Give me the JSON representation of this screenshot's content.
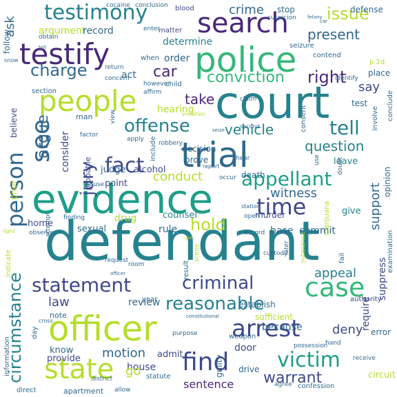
{
  "colors": {
    "background": "#ffffff",
    "palette": [
      "#440154",
      "#482878",
      "#3e4989",
      "#31688e",
      "#26828e",
      "#1f9e89",
      "#35b779",
      "#6ece58",
      "#b5de2b",
      "#fde725"
    ]
  },
  "words": [
    "defendant",
    "court",
    "evidence",
    "police",
    "testify",
    "officer",
    "trial",
    "people",
    "search",
    "state",
    "arrest",
    "testimony",
    "case",
    "find",
    "victim",
    "statement",
    "fact",
    "criminal",
    "see",
    "person",
    "reasonable",
    "time",
    "appellant",
    "circumstance",
    "conviction",
    "charge",
    "offense",
    "jury",
    "warrant",
    "right",
    "question",
    "car",
    "hold",
    "tell",
    "witness",
    "issue",
    "argue",
    "vehicle",
    "support",
    "conduct",
    "crime",
    "present",
    "take",
    "law",
    "ask",
    "motion",
    "sentence",
    "deny",
    "appeal",
    "say",
    "argument",
    "record",
    "determine",
    "order",
    "act",
    "hearing",
    "consider",
    "believe",
    "prior",
    "judge",
    "alcohol",
    "point",
    "drug",
    "rule",
    "sexual",
    "home",
    "counsel",
    "base",
    "commit",
    "give",
    "leave",
    "murder",
    "death",
    "prove",
    "decision",
    "include",
    "review",
    "because",
    "know",
    "provide",
    "house",
    "admit",
    "go",
    "door",
    "drive",
    "guilty",
    "sufficient",
    "establish",
    "error",
    "require",
    "suppress",
    "opinion",
    "examination",
    "fail",
    "marijuana",
    "authority",
    "weapon",
    "possession",
    "hand",
    "receive",
    "circuit",
    "agree",
    "confession",
    "apartment",
    "allow",
    "direct",
    "information",
    "indicate",
    "day",
    "note",
    "year",
    "result",
    "statute",
    "purpose",
    "district",
    "concern",
    "section",
    "follow",
    "stop",
    "defense",
    "blood",
    "suspicion",
    "cocaine",
    "conclusion",
    "obtain",
    "enter",
    "seizure",
    "contend",
    "p.2d",
    "matter",
    "when",
    "however",
    "child",
    "return",
    "affirm",
    "identify",
    "place",
    "test",
    "conclude",
    "involve",
    "consent",
    "factor",
    "man",
    "view",
    "apply",
    "robbery",
    "probable",
    "abuse",
    "attempt",
    "observe",
    "finding",
    "room",
    "request",
    "later",
    "custody",
    "substance",
    "scene",
    "open",
    "accord",
    "occur",
    "station",
    "claim",
    "doubt",
    "use",
    "hear",
    "report",
    "violation",
    "light",
    "snow",
    "cross",
    "felony",
    "seize",
    "second",
    "constitutional",
    "gun",
    "car",
    "officer",
    "tell"
  ]
}
